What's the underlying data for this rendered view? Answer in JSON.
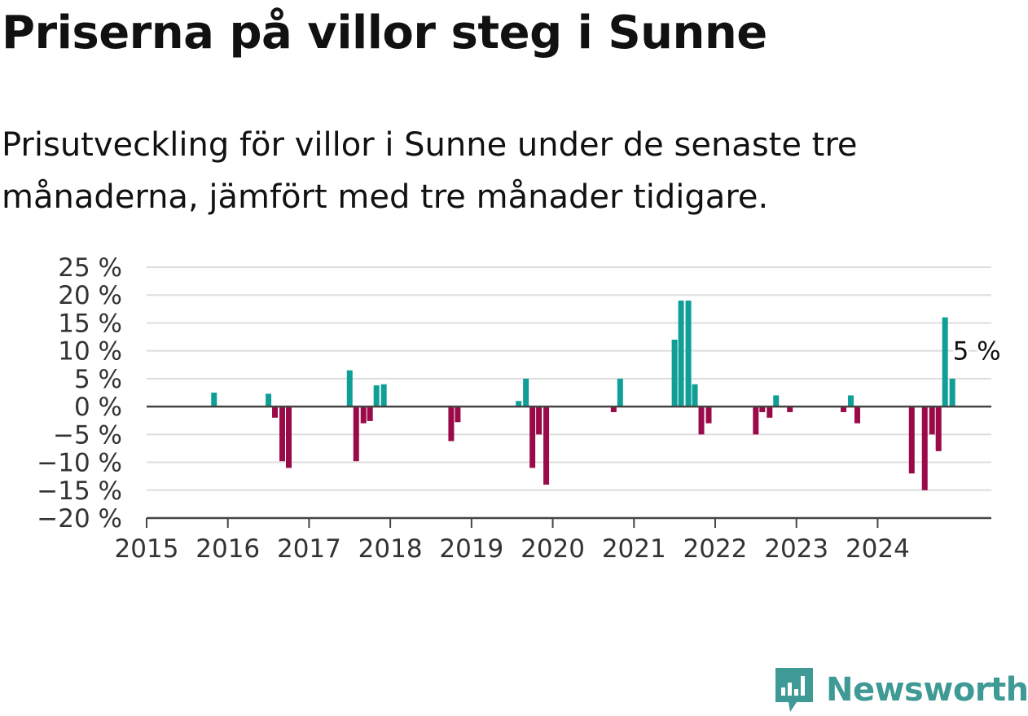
{
  "header": {
    "title": "Priserna på villor steg i Sunne",
    "subtitle": "Prisutveckling för villor i Sunne under de senaste tre månaderna, jämfört med tre månader tidigare."
  },
  "brand": {
    "name": "Newsworthy",
    "icon": "newsworthy-logo-icon"
  },
  "colors": {
    "positive": "#0f9f97",
    "negative": "#9a0a48",
    "grid": "#dddddd",
    "axis": "#444444"
  },
  "chart_data": {
    "type": "bar",
    "x_unit": "year (decimal)",
    "xlim": [
      2015,
      2025.4
    ],
    "x_ticks": [
      2015,
      2016,
      2017,
      2018,
      2019,
      2020,
      2021,
      2022,
      2023,
      2024
    ],
    "x_tick_labels": [
      "2015",
      "2016",
      "2017",
      "2018",
      "2019",
      "2020",
      "2021",
      "2022",
      "2023",
      "2024"
    ],
    "ylim": [
      -20,
      25
    ],
    "y_ticks": [
      25,
      20,
      15,
      10,
      5,
      0,
      -5,
      -10,
      -15,
      -20
    ],
    "y_tick_labels": [
      "25 %",
      "20 %",
      "15 %",
      "10 %",
      "5 %",
      "0 %",
      "−5 %",
      "−10 %",
      "−15 %",
      "−20 %"
    ],
    "grid": true,
    "points": [
      {
        "x": 2015.83,
        "y": 2.5
      },
      {
        "x": 2016.5,
        "y": 2.3
      },
      {
        "x": 2016.58,
        "y": -2
      },
      {
        "x": 2016.67,
        "y": -9.8
      },
      {
        "x": 2016.75,
        "y": -11
      },
      {
        "x": 2017.5,
        "y": 6.5
      },
      {
        "x": 2017.58,
        "y": -9.8
      },
      {
        "x": 2017.67,
        "y": -3
      },
      {
        "x": 2017.75,
        "y": -2.6
      },
      {
        "x": 2017.83,
        "y": 3.8
      },
      {
        "x": 2017.92,
        "y": 4
      },
      {
        "x": 2018.75,
        "y": -6.2
      },
      {
        "x": 2018.83,
        "y": -2.8
      },
      {
        "x": 2019.58,
        "y": 1
      },
      {
        "x": 2019.67,
        "y": 5
      },
      {
        "x": 2019.75,
        "y": -11
      },
      {
        "x": 2019.83,
        "y": -5
      },
      {
        "x": 2019.92,
        "y": -14
      },
      {
        "x": 2020.75,
        "y": -1
      },
      {
        "x": 2020.83,
        "y": 5
      },
      {
        "x": 2021.5,
        "y": 12
      },
      {
        "x": 2021.58,
        "y": 19
      },
      {
        "x": 2021.67,
        "y": 19
      },
      {
        "x": 2021.75,
        "y": 4
      },
      {
        "x": 2021.83,
        "y": -5
      },
      {
        "x": 2021.92,
        "y": -3
      },
      {
        "x": 2022.5,
        "y": -5
      },
      {
        "x": 2022.58,
        "y": -1
      },
      {
        "x": 2022.67,
        "y": -2
      },
      {
        "x": 2022.75,
        "y": 2
      },
      {
        "x": 2022.92,
        "y": -1
      },
      {
        "x": 2023.58,
        "y": -1
      },
      {
        "x": 2023.67,
        "y": 2
      },
      {
        "x": 2023.75,
        "y": -3
      },
      {
        "x": 2024.42,
        "y": -12
      },
      {
        "x": 2024.58,
        "y": -15
      },
      {
        "x": 2024.67,
        "y": -5
      },
      {
        "x": 2024.75,
        "y": -8
      },
      {
        "x": 2024.83,
        "y": 16
      },
      {
        "x": 2024.92,
        "y": 5
      }
    ],
    "annotation": {
      "x": 2024.92,
      "y": 5,
      "text": "5 %"
    }
  }
}
